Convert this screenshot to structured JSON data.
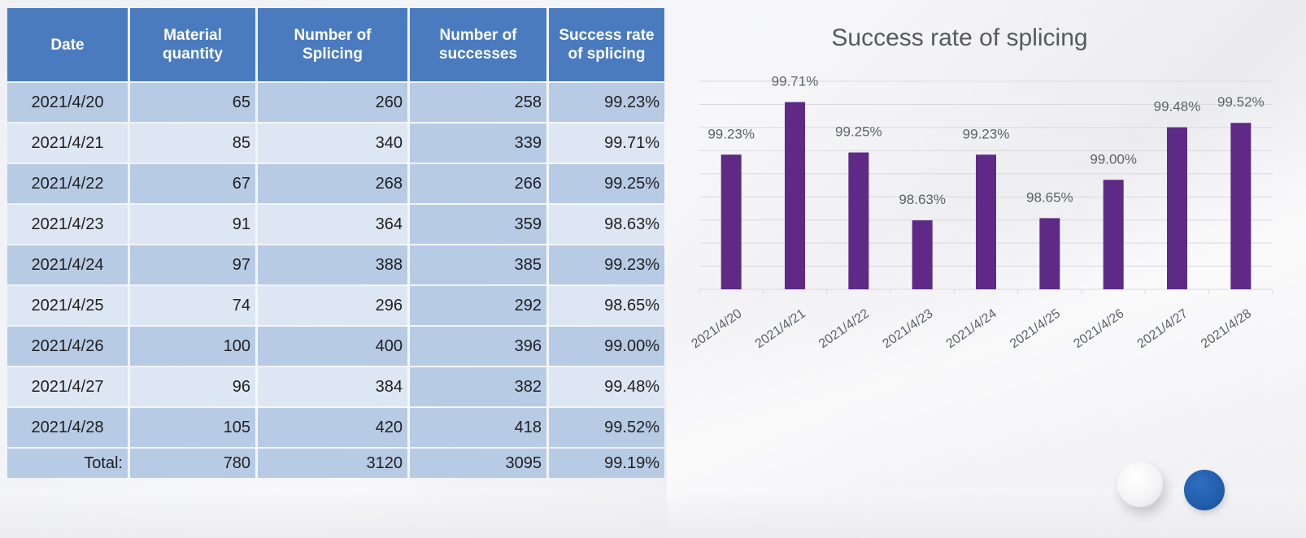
{
  "table": {
    "headers": [
      "Date",
      "Material quantity",
      "Number of Splicing",
      "Number of successes",
      "Success rate of splicing"
    ],
    "rows": [
      [
        "2021/4/20",
        "65",
        "260",
        "258",
        "99.23%"
      ],
      [
        "2021/4/21",
        "85",
        "340",
        "339",
        "99.71%"
      ],
      [
        "2021/4/22",
        "67",
        "268",
        "266",
        "99.25%"
      ],
      [
        "2021/4/23",
        "91",
        "364",
        "359",
        "98.63%"
      ],
      [
        "2021/4/24",
        "97",
        "388",
        "385",
        "99.23%"
      ],
      [
        "2021/4/25",
        "74",
        "296",
        "292",
        "98.65%"
      ],
      [
        "2021/4/26",
        "100",
        "400",
        "396",
        "99.00%"
      ],
      [
        "2021/4/27",
        "96",
        "384",
        "382",
        "99.48%"
      ],
      [
        "2021/4/28",
        "105",
        "420",
        "418",
        "99.52%"
      ]
    ],
    "total": [
      "Total:",
      "780",
      "3120",
      "3095",
      "99.19%"
    ]
  },
  "chart_data": {
    "type": "bar",
    "title": "Success rate of splicing",
    "categories": [
      "2021/4/20",
      "2021/4/21",
      "2021/4/22",
      "2021/4/23",
      "2021/4/24",
      "2021/4/25",
      "2021/4/26",
      "2021/4/27",
      "2021/4/28"
    ],
    "values": [
      99.23,
      99.71,
      99.25,
      98.63,
      99.23,
      98.65,
      99.0,
      99.48,
      99.52
    ],
    "data_labels": [
      "99.23%",
      "99.71%",
      "99.25%",
      "98.63%",
      "99.23%",
      "98.65%",
      "99.00%",
      "99.48%",
      "99.52%"
    ],
    "ylim": [
      98.0,
      99.9
    ],
    "xlabel": "",
    "ylabel": "",
    "grid": true,
    "bar_color": "#5e2a86"
  },
  "colors": {
    "header_bg": "#4a7bbf",
    "cell_dark": "#b7cbe5",
    "cell_light": "#dde7f3",
    "accent_blue": "#1f5aa6"
  }
}
